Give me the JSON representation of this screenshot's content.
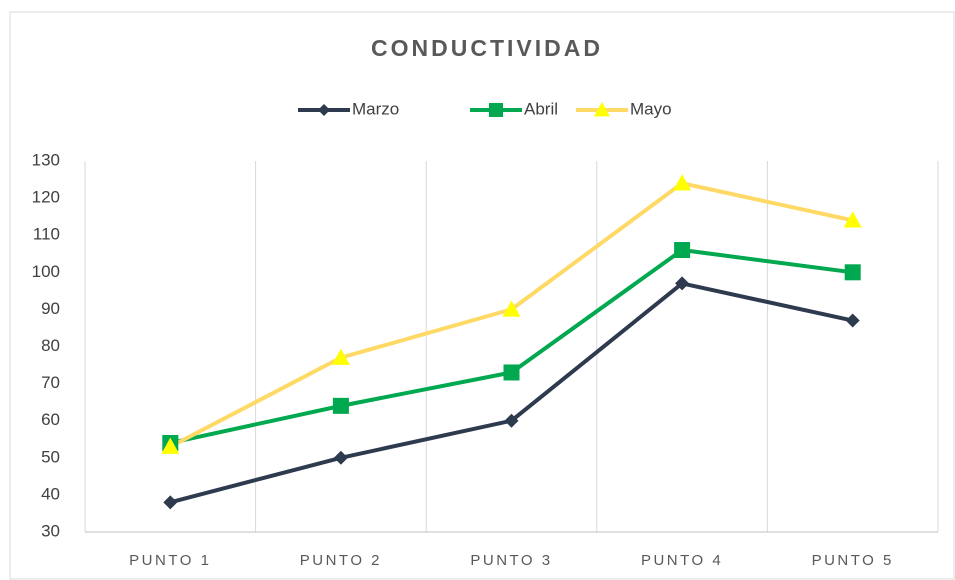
{
  "chart_data": {
    "type": "line",
    "title": "CONDUCTIVIDAD",
    "categories": [
      "PUNTO 1",
      "PUNTO 2",
      "PUNTO 3",
      "PUNTO 4",
      "PUNTO 5"
    ],
    "series": [
      {
        "name": "Marzo",
        "color": "#2e3a4e",
        "marker": "diamond",
        "marker_color": "#2e3a4e",
        "values": [
          38,
          50,
          60,
          97,
          87
        ]
      },
      {
        "name": "Abril",
        "color": "#00a84f",
        "marker": "square",
        "marker_color": "#00a84f",
        "values": [
          54,
          64,
          73,
          106,
          100
        ]
      },
      {
        "name": "Mayo",
        "color": "#ffd966",
        "marker": "triangle",
        "marker_color": "#ffff00",
        "values": [
          53,
          77,
          90,
          124,
          114
        ]
      }
    ],
    "ylim": [
      30,
      130
    ],
    "yticks": [
      30,
      40,
      50,
      60,
      70,
      80,
      90,
      100,
      110,
      120,
      130
    ],
    "legend": "top"
  }
}
